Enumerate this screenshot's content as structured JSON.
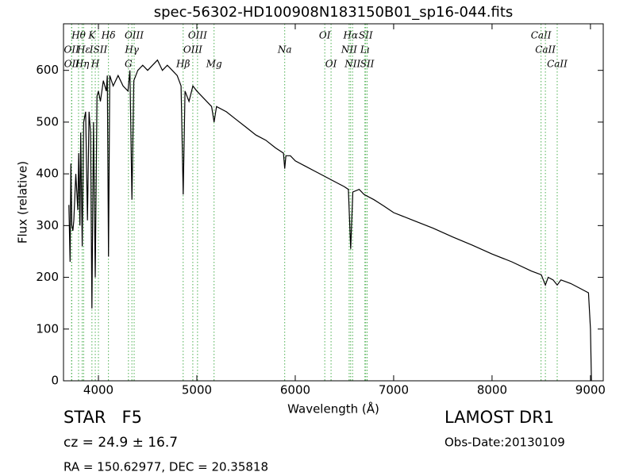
{
  "chart_data": {
    "type": "line",
    "title": "spec-56302-HD100908N183150B01_sp16-044.fits",
    "xlabel": "Wavelength (Å)",
    "ylabel": "Flux (relative)",
    "x": [
      3700,
      3712,
      3720,
      3730,
      3740,
      3750,
      3770,
      3790,
      3800,
      3812,
      3820,
      3835,
      3850,
      3870,
      3889,
      3905,
      3920,
      3934,
      3950,
      3968,
      3985,
      4000,
      4020,
      4050,
      4080,
      4090,
      4102,
      4115,
      4150,
      4200,
      4250,
      4300,
      4320,
      4340,
      4360,
      4400,
      4450,
      4500,
      4550,
      4600,
      4650,
      4700,
      4750,
      4800,
      4840,
      4861,
      4880,
      4920,
      4960,
      5000,
      5050,
      5100,
      5150,
      5175,
      5200,
      5300,
      5400,
      5500,
      5600,
      5700,
      5800,
      5880,
      5893,
      5905,
      5950,
      6000,
      6100,
      6200,
      6300,
      6400,
      6500,
      6540,
      6563,
      6585,
      6650,
      6700,
      6800,
      6900,
      7000,
      7200,
      7400,
      7600,
      7800,
      8000,
      8200,
      8400,
      8500,
      8542,
      8570,
      8620,
      8662,
      8700,
      8800,
      8900,
      8980,
      9000,
      9010
    ],
    "series": [
      {
        "name": "flux",
        "color": "#000000",
        "values": [
          340,
          230,
          420,
          300,
          290,
          310,
          400,
          330,
          440,
          300,
          480,
          260,
          500,
          520,
          310,
          520,
          480,
          140,
          500,
          200,
          550,
          560,
          540,
          580,
          560,
          590,
          240,
          590,
          570,
          590,
          570,
          560,
          600,
          350,
          580,
          600,
          610,
          600,
          610,
          620,
          600,
          610,
          600,
          590,
          570,
          360,
          560,
          540,
          570,
          560,
          550,
          540,
          530,
          500,
          530,
          520,
          505,
          490,
          475,
          465,
          450,
          440,
          410,
          435,
          435,
          425,
          415,
          405,
          395,
          385,
          375,
          370,
          255,
          365,
          370,
          360,
          350,
          338,
          325,
          310,
          295,
          278,
          262,
          245,
          230,
          212,
          205,
          185,
          200,
          195,
          185,
          195,
          188,
          178,
          170,
          100,
          0
        ]
      }
    ],
    "xlim": [
      3645,
      9130
    ],
    "ylim": [
      0,
      690
    ],
    "xticks": [
      4000,
      5000,
      6000,
      7000,
      8000,
      9000
    ],
    "yticks": [
      0,
      100,
      200,
      300,
      400,
      500,
      600
    ],
    "line_color": "#4caf50",
    "line_labels": [
      [
        {
          "label": "Hθ",
          "x": 3798
        },
        {
          "label": "K",
          "x": 3934
        },
        {
          "label": "Hδ",
          "x": 4102
        },
        {
          "label": "OIII",
          "x": 4363
        },
        {
          "label": "OIII",
          "x": 5007
        },
        {
          "label": "OI",
          "x": 6300
        },
        {
          "label": "Hα",
          "x": 6563
        },
        {
          "label": "SII",
          "x": 6716
        },
        {
          "label": "CaII",
          "x": 8498
        }
      ],
      [
        {
          "label": "OII",
          "x": 3727
        },
        {
          "label": "Hε",
          "x": 3850
        },
        {
          "label": "ISII",
          "x": 4000
        },
        {
          "label": "Hγ",
          "x": 4340
        },
        {
          "label": "OIII",
          "x": 4959
        },
        {
          "label": "Na",
          "x": 5893
        },
        {
          "label": "NII",
          "x": 6548
        },
        {
          "label": "Lı",
          "x": 6708
        },
        {
          "label": "CaII",
          "x": 8542
        }
      ],
      [
        {
          "label": "OII",
          "x": 3729
        },
        {
          "label": "Hη",
          "x": 3835
        },
        {
          "label": "H",
          "x": 3968
        },
        {
          "label": "G",
          "x": 4305
        },
        {
          "label": "Hβ",
          "x": 4861
        },
        {
          "label": "Mg",
          "x": 5175
        },
        {
          "label": "OI",
          "x": 6364
        },
        {
          "label": "NII",
          "x": 6583
        },
        {
          "label": "SII",
          "x": 6731
        },
        {
          "label": "CaII",
          "x": 8662
        }
      ]
    ]
  },
  "footer": {
    "object": "STAR   F5",
    "cz": "cz = 24.9 ± 16.7",
    "coords": "RA = 150.62977, DEC = 20.35818",
    "survey": "LAMOST DR1",
    "date": "Obs-Date:20130109"
  }
}
